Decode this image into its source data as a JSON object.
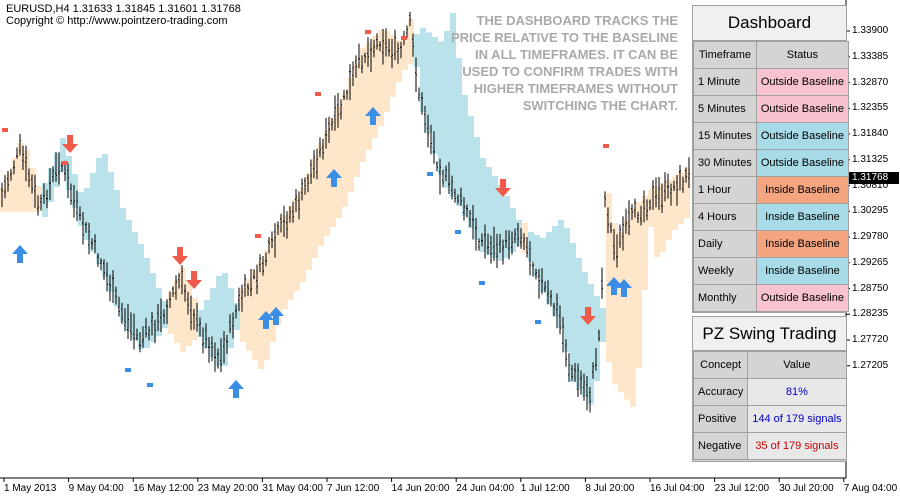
{
  "chart": {
    "symbol_line": "EURUSD,H4  1.31633  1.31845  1.31601  1.31768",
    "copyright": "Copyright © http://www.pointzero-trading.com",
    "note": "THE DASHBOARD TRACKS THE PRICE RELATIVE TO THE BASELINE IN ALL TIMEFRAMES. IT CAN BE USED TO CONFIRM TRADES WITH HIGHER TIMEFRAMES WITHOUT SWITCHING THE CHART."
  },
  "colors": {
    "band_above": "#fde3c4",
    "band_below": "#b3dfe8",
    "arrow_down": "#f05a4a",
    "arrow_up": "#3a8ee6",
    "outside": "#f8c3cf",
    "inside_hot": "#f4a57f",
    "inside_cool": "#a8dbe8"
  },
  "price_axis": [
    "1.33900",
    "1.33385",
    "1.32870",
    "1.32355",
    "1.31840",
    "1.31325",
    "1.30810",
    "1.30295",
    "1.29780",
    "1.29265",
    "1.28750",
    "1.28235",
    "1.27720",
    "1.27205"
  ],
  "current_price": "1.31768",
  "time_axis": [
    "1 May 2013",
    "9 May 04:00",
    "16 May 12:00",
    "23 May 20:00",
    "31 May 04:00",
    "7 Jun 12:00",
    "14 Jun 20:00",
    "24 Jun 04:00",
    "1 Jul 12:00",
    "8 Jul 20:00",
    "16 Jul 04:00",
    "23 Jul 12:00",
    "30 Jul 20:00",
    "7 Aug 04:00"
  ],
  "dashboard": {
    "title": "Dashboard",
    "headers": [
      "Timeframe",
      "Status"
    ],
    "rows": [
      {
        "tf": "1 Minute",
        "status": "Outside Baseline",
        "tone": "outside"
      },
      {
        "tf": "5 Minutes",
        "status": "Outside Baseline",
        "tone": "outside"
      },
      {
        "tf": "15 Minutes",
        "status": "Outside Baseline",
        "tone": "inside_cool"
      },
      {
        "tf": "30 Minutes",
        "status": "Outside Baseline",
        "tone": "inside_cool"
      },
      {
        "tf": "1 Hour",
        "status": "Inside Baseline",
        "tone": "inside_hot"
      },
      {
        "tf": "4 Hours",
        "status": "Inside Baseline",
        "tone": "inside_cool"
      },
      {
        "tf": "Daily",
        "status": "Inside Baseline",
        "tone": "inside_hot"
      },
      {
        "tf": "Weekly",
        "status": "Inside Baseline",
        "tone": "inside_cool"
      },
      {
        "tf": "Monthly",
        "status": "Outside Baseline",
        "tone": "outside"
      }
    ]
  },
  "swing": {
    "title": "PZ Swing Trading",
    "headers": [
      "Concept",
      "Value"
    ],
    "rows": [
      {
        "concept": "Accuracy",
        "value": "81%",
        "color": "#0000cc"
      },
      {
        "concept": "Positive",
        "value": "144 of 179 signals",
        "color": "#0000cc"
      },
      {
        "concept": "Negative",
        "value": "35 of 179 signals",
        "color": "#cc0000"
      }
    ]
  }
}
